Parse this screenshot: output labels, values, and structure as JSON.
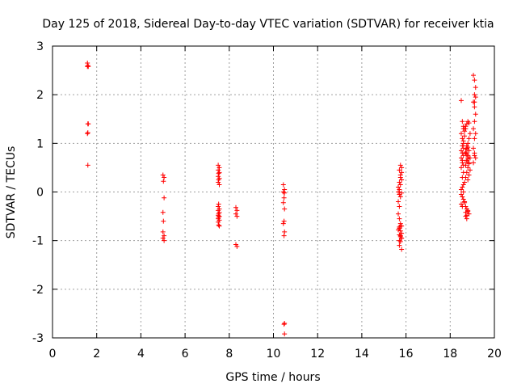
{
  "chart_data": {
    "type": "scatter",
    "title": "Day 125 of 2018, Sidereal Day-to-day VTEC variation (SDTVAR) for receiver ktia",
    "xlabel": "GPS time / hours",
    "ylabel": "SDTVAR / TECUs",
    "xlim": [
      0,
      20
    ],
    "ylim": [
      -3,
      3
    ],
    "xticks": [
      "0",
      "2",
      "4",
      "6",
      "8",
      "10",
      "12",
      "14",
      "16",
      "18",
      "20"
    ],
    "yticks": [
      "-3",
      "-2",
      "-1",
      "0",
      "1",
      "2",
      "3"
    ],
    "grid": true,
    "marker": "+",
    "marker_color": "#ff0000",
    "series": [
      {
        "name": "SDTVAR",
        "x": [
          1.58,
          1.58,
          1.6,
          1.62,
          1.6,
          1.58,
          1.6,
          1.62,
          1.6,
          5.0,
          5.05,
          5.02,
          5.05,
          5.0,
          5.02,
          5.0,
          5.05,
          5.0,
          5.05,
          7.5,
          7.55,
          7.5,
          7.55,
          7.52,
          7.5,
          7.55,
          7.52,
          7.5,
          7.55,
          7.52,
          7.5,
          7.55,
          7.5,
          7.55,
          7.52,
          7.5,
          7.55,
          7.52,
          7.5,
          7.55,
          7.5,
          7.52,
          7.55,
          8.3,
          8.35,
          8.3,
          8.35,
          8.3,
          8.35,
          10.45,
          10.5,
          10.45,
          10.5,
          10.48,
          10.45,
          10.5,
          10.48,
          10.45,
          10.5,
          10.48,
          10.5,
          10.48,
          10.5,
          15.65,
          15.7,
          15.75,
          15.8,
          15.65,
          15.7,
          15.75,
          15.8,
          15.65,
          15.7,
          15.75,
          15.8,
          15.7,
          15.75,
          15.65,
          15.7,
          15.75,
          15.8,
          15.7,
          15.75,
          15.8,
          15.65,
          15.7,
          15.75,
          15.8,
          15.7,
          15.75,
          15.7,
          15.8,
          15.75,
          15.7,
          15.75,
          15.8,
          15.7,
          15.75,
          15.8,
          18.5,
          18.55,
          18.6,
          18.5,
          18.55,
          18.6,
          18.65,
          18.5,
          18.55,
          18.6,
          18.65,
          18.6,
          18.55,
          18.5,
          18.65,
          18.6,
          18.55,
          18.5,
          18.6,
          18.65,
          18.55,
          18.5,
          18.6,
          18.55,
          18.65,
          18.6,
          18.55,
          18.5,
          18.6,
          18.55,
          18.6,
          18.5,
          18.65,
          18.55,
          18.6,
          18.7,
          18.75,
          18.8,
          18.85,
          18.9,
          18.7,
          18.75,
          18.8,
          18.85,
          18.9,
          18.7,
          18.75,
          18.8,
          18.85,
          18.9,
          18.7,
          18.75,
          18.8,
          18.85,
          18.7,
          18.75,
          18.8,
          18.85,
          18.7,
          18.75,
          18.8,
          18.7,
          18.75,
          18.8,
          18.85,
          18.7,
          18.75,
          18.8,
          18.75,
          18.7,
          18.8,
          18.75,
          18.8,
          18.85,
          18.75,
          19.05,
          19.1,
          19.15,
          19.1,
          19.05,
          19.1,
          19.15,
          19.1,
          19.05,
          19.15,
          19.1,
          19.05,
          19.1,
          19.15,
          19.1,
          19.05,
          19.1,
          19.15
        ],
        "y": [
          2.65,
          2.58,
          2.6,
          2.58,
          1.4,
          1.2,
          1.22,
          1.4,
          0.55,
          0.35,
          0.3,
          0.22,
          -0.12,
          -0.42,
          -0.6,
          -0.82,
          -0.9,
          -0.95,
          -1.0,
          0.55,
          0.5,
          0.45,
          0.4,
          0.38,
          0.32,
          0.28,
          0.25,
          0.2,
          0.15,
          -0.25,
          -0.3,
          -0.35,
          -0.38,
          -0.42,
          -0.45,
          -0.48,
          -0.5,
          -0.52,
          -0.55,
          -0.58,
          -0.62,
          -0.68,
          -0.7,
          -0.32,
          -0.38,
          -0.45,
          -0.5,
          -1.08,
          -1.12,
          0.15,
          0.05,
          0.0,
          -0.02,
          -0.12,
          -0.22,
          -0.35,
          -0.6,
          -0.65,
          -0.82,
          -0.9,
          -2.7,
          -2.72,
          -2.92,
          0.1,
          0.2,
          0.3,
          0.4,
          0.0,
          -0.05,
          0.15,
          0.25,
          -0.2,
          -0.3,
          -0.1,
          0.5,
          0.45,
          0.35,
          -0.45,
          -0.55,
          -0.65,
          -0.7,
          -0.75,
          -0.8,
          -0.85,
          -0.78,
          -0.88,
          -0.92,
          -0.95,
          -1.0,
          -1.02,
          -1.1,
          -1.18,
          -0.9,
          -0.72,
          -0.7,
          -0.95,
          0.05,
          0.55,
          -0.02,
          0.05,
          0.1,
          0.15,
          -0.05,
          -0.1,
          -0.15,
          -0.2,
          -0.25,
          -0.3,
          0.0,
          -0.22,
          1.0,
          1.1,
          1.2,
          1.3,
          0.9,
          0.8,
          0.7,
          1.35,
          1.25,
          0.6,
          0.5,
          0.4,
          0.3,
          0.2,
          1.05,
          0.95,
          0.85,
          0.75,
          0.65,
          0.55,
          1.88,
          1.15,
          1.45,
          1.3,
          0.3,
          0.4,
          0.5,
          0.6,
          0.7,
          0.8,
          0.9,
          1.0,
          1.1,
          1.2,
          1.3,
          1.4,
          0.25,
          0.35,
          0.45,
          0.55,
          0.65,
          0.75,
          0.85,
          -0.3,
          -0.35,
          -0.4,
          -0.45,
          -0.5,
          -0.55,
          -0.38,
          -0.42,
          -0.48,
          1.45,
          1.42,
          1.35,
          0.95,
          0.72,
          0.62,
          0.82,
          0.92,
          0.78,
          0.68,
          0.58,
          0.88,
          2.4,
          2.3,
          2.15,
          2.0,
          1.85,
          1.75,
          1.6,
          1.45,
          1.3,
          1.2,
          1.1,
          0.9,
          0.8,
          0.7,
          0.75,
          0.6,
          1.85,
          1.95
        ]
      }
    ]
  }
}
